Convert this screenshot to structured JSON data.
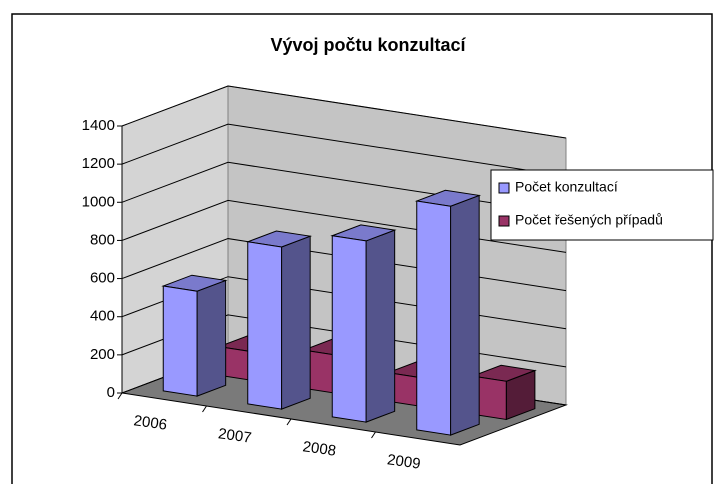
{
  "chart_data": {
    "type": "bar3d",
    "title": "Vývoj počtu konzultací",
    "categories": [
      "2006",
      "2007",
      "2008",
      "2009"
    ],
    "series": [
      {
        "name": "Počet konzultací",
        "color": "#9999ff",
        "values": [
          550,
          850,
          950,
          1200
        ]
      },
      {
        "name": "Počet řešených případů",
        "color": "#993366",
        "values": [
          150,
          200,
          150,
          200
        ]
      }
    ],
    "ylim": [
      0,
      1400
    ],
    "yticks": [
      0,
      200,
      400,
      600,
      800,
      1000,
      1200,
      1400
    ],
    "grid": true,
    "legend": "right"
  }
}
